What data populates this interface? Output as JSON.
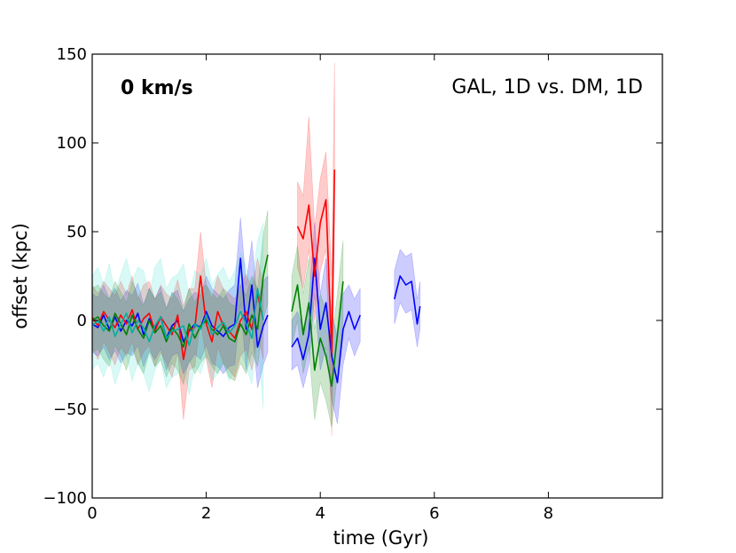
{
  "chart_data": {
    "type": "line",
    "title": "",
    "xlabel": "time (Gyr)",
    "ylabel": "offset (kpc)",
    "xlim": [
      0,
      10
    ],
    "ylim": [
      -100,
      150
    ],
    "xticks": [
      0,
      2,
      4,
      6,
      8
    ],
    "xtick_labels": [
      "0",
      "2",
      "4",
      "6",
      "8"
    ],
    "yticks": [
      -100,
      -50,
      0,
      50,
      100,
      150
    ],
    "ytick_labels": [
      "−100",
      "−50",
      "0",
      "50",
      "100",
      "150"
    ],
    "grid": false,
    "annotations": {
      "left": "0 km/s",
      "right": "GAL, 1D vs. DM, 1D"
    },
    "series": [
      {
        "name": "blue",
        "color": "#0000ff",
        "band_color": "#0000ff",
        "segments": [
          {
            "x": [
              0.0,
              0.1,
              0.2,
              0.3,
              0.4,
              0.5,
              0.6,
              0.7,
              0.8,
              0.9,
              1.0,
              1.1,
              1.2,
              1.3,
              1.4,
              1.5,
              1.6,
              1.7,
              1.8,
              1.9,
              2.0,
              2.1,
              2.2,
              2.3,
              2.4,
              2.5,
              2.6,
              2.7,
              2.8,
              2.9,
              3.0,
              3.08
            ],
            "y": [
              -2,
              -4,
              3,
              -5,
              2,
              -6,
              0,
              -3,
              4,
              -8,
              1,
              -5,
              2,
              -10,
              -3,
              0,
              -12,
              -6,
              -2,
              -4,
              5,
              -3,
              -6,
              -9,
              -4,
              -2,
              35,
              -5,
              20,
              -15,
              -3,
              3
            ],
            "lo": [
              -18,
              -20,
              -15,
              -22,
              -17,
              -24,
              -18,
              -20,
              -14,
              -26,
              -17,
              -22,
              -16,
              -28,
              -20,
              -18,
              -30,
              -24,
              -19,
              -22,
              -14,
              -24,
              -26,
              -30,
              -26,
              -25,
              10,
              -28,
              -2,
              -38,
              -25,
              -18
            ],
            "hi": [
              15,
              13,
              20,
              12,
              18,
              11,
              17,
              14,
              21,
              9,
              18,
              12,
              19,
              7,
              15,
              17,
              5,
              12,
              16,
              14,
              25,
              18,
              15,
              12,
              17,
              20,
              58,
              20,
              45,
              10,
              22,
              25
            ]
          },
          {
            "x": [
              3.5,
              3.6,
              3.7,
              3.8,
              3.9,
              4.0,
              4.1,
              4.2,
              4.3,
              4.4,
              4.5,
              4.6,
              4.7
            ],
            "y": [
              -15,
              -10,
              -22,
              -8,
              35,
              -5,
              10,
              -20,
              -35,
              -5,
              5,
              -5,
              3
            ],
            "lo": [
              -28,
              -25,
              -38,
              -25,
              15,
              -28,
              -15,
              -45,
              -58,
              -25,
              -10,
              -20,
              -12
            ],
            "hi": [
              0,
              5,
              -5,
              10,
              55,
              15,
              35,
              5,
              -10,
              15,
              20,
              12,
              18
            ]
          },
          {
            "x": [
              5.3,
              5.4,
              5.5,
              5.6,
              5.7,
              5.75
            ],
            "y": [
              12,
              25,
              20,
              22,
              -2,
              8
            ],
            "lo": [
              -2,
              10,
              4,
              6,
              -15,
              -5
            ],
            "hi": [
              28,
              40,
              36,
              38,
              12,
              22
            ]
          }
        ]
      },
      {
        "name": "red",
        "color": "#ff0000",
        "band_color": "#ff0000",
        "segments": [
          {
            "x": [
              0.0,
              0.1,
              0.2,
              0.3,
              0.4,
              0.5,
              0.6,
              0.7,
              0.8,
              0.9,
              1.0,
              1.1,
              1.2,
              1.3,
              1.4,
              1.5,
              1.6,
              1.7,
              1.8,
              1.9,
              2.0,
              2.1,
              2.2,
              2.3,
              2.4,
              2.5,
              2.6,
              2.7,
              2.8,
              2.9,
              3.0
            ],
            "y": [
              2,
              -3,
              5,
              0,
              -4,
              3,
              -2,
              6,
              -5,
              1,
              4,
              -6,
              2,
              -3,
              -8,
              3,
              -22,
              -5,
              -4,
              25,
              -2,
              -12,
              5,
              -3,
              -6,
              -10,
              0,
              5,
              -5,
              15,
              0
            ],
            "lo": [
              -15,
              -22,
              -12,
              -18,
              -25,
              -15,
              -20,
              -12,
              -25,
              -18,
              -14,
              -26,
              -18,
              -24,
              -32,
              -18,
              -56,
              -28,
              -26,
              0,
              -22,
              -38,
              -15,
              -24,
              -28,
              -32,
              -20,
              -16,
              -28,
              -8,
              -22
            ],
            "hi": [
              20,
              15,
              22,
              18,
              14,
              22,
              15,
              25,
              12,
              20,
              22,
              12,
              20,
              15,
              12,
              23,
              8,
              18,
              18,
              50,
              20,
              12,
              25,
              18,
              15,
              12,
              20,
              26,
              18,
              35,
              20
            ]
          },
          {
            "x": [
              3.6,
              3.7,
              3.8,
              3.9,
              4.0,
              4.1,
              4.2,
              4.25
            ],
            "y": [
              53,
              46,
              65,
              25,
              55,
              68,
              -18,
              85
            ],
            "lo": [
              30,
              18,
              40,
              0,
              28,
              40,
              -65,
              55
            ],
            "hi": [
              78,
              70,
              115,
              52,
              80,
              95,
              25,
              145
            ]
          }
        ]
      },
      {
        "name": "green",
        "color": "#008000",
        "band_color": "#008000",
        "segments": [
          {
            "x": [
              0.0,
              0.1,
              0.2,
              0.3,
              0.4,
              0.5,
              0.6,
              0.7,
              0.8,
              0.9,
              1.0,
              1.1,
              1.2,
              1.3,
              1.4,
              1.5,
              1.6,
              1.7,
              1.8,
              1.9,
              2.0,
              2.1,
              2.2,
              2.3,
              2.4,
              2.5,
              2.6,
              2.7,
              2.8,
              2.9,
              3.0,
              3.08
            ],
            "y": [
              0,
              2,
              -3,
              -6,
              4,
              -2,
              -8,
              3,
              -5,
              -10,
              0,
              -7,
              -3,
              -12,
              -4,
              -8,
              -15,
              -2,
              -10,
              -3,
              0,
              -5,
              -8,
              -3,
              -10,
              -12,
              -2,
              -8,
              3,
              -5,
              25,
              37
            ],
            "lo": [
              -18,
              -16,
              -22,
              -26,
              -14,
              -20,
              -28,
              -16,
              -24,
              -30,
              -18,
              -26,
              -22,
              -32,
              -24,
              -28,
              -36,
              -22,
              -30,
              -24,
              -20,
              -26,
              -30,
              -24,
              -32,
              -34,
              -24,
              -30,
              -18,
              -26,
              0,
              10
            ],
            "hi": [
              18,
              20,
              15,
              12,
              22,
              16,
              10,
              22,
              14,
              8,
              18,
              12,
              16,
              6,
              16,
              12,
              5,
              18,
              10,
              17,
              20,
              15,
              12,
              18,
              10,
              8,
              20,
              14,
              25,
              18,
              48,
              62
            ]
          },
          {
            "x": [
              3.5,
              3.6,
              3.7,
              3.8,
              3.9,
              4.0,
              4.1,
              4.2,
              4.3,
              4.4
            ],
            "y": [
              5,
              20,
              -8,
              10,
              -28,
              -10,
              -20,
              -37,
              -8,
              22
            ],
            "lo": [
              -15,
              0,
              -30,
              -15,
              -56,
              -35,
              -45,
              -60,
              -30,
              0
            ],
            "hi": [
              25,
              42,
              15,
              35,
              -5,
              15,
              5,
              -12,
              15,
              45
            ]
          }
        ]
      },
      {
        "name": "teal",
        "color": "#00b0a0",
        "band_color": "#40e0d0",
        "segments": [
          {
            "x": [
              0.0,
              0.1,
              0.2,
              0.3,
              0.4,
              0.5,
              0.6,
              0.7,
              0.8,
              0.9,
              1.0,
              1.1,
              1.2,
              1.3,
              1.4,
              1.5,
              1.6,
              1.7,
              1.8,
              1.9,
              2.0,
              2.1,
              2.2,
              2.3,
              2.4,
              2.5,
              2.6,
              2.7,
              2.8,
              2.9,
              3.0
            ],
            "y": [
              -3,
              0,
              -6,
              2,
              -9,
              -2,
              4,
              -7,
              0,
              -4,
              -12,
              -3,
              2,
              -10,
              -6,
              -5,
              -3,
              -14,
              -2,
              -5,
              3,
              -8,
              -4,
              -1,
              -7,
              -3,
              5,
              -2,
              -10,
              18,
              0
            ],
            "lo": [
              -28,
              -24,
              -32,
              -22,
              -36,
              -26,
              -20,
              -34,
              -24,
              -30,
              -40,
              -28,
              -22,
              -38,
              -32,
              -30,
              -26,
              -42,
              -26,
              -30,
              -20,
              -34,
              -30,
              -24,
              -34,
              -28,
              -18,
              -26,
              -36,
              -8,
              -50
            ],
            "hi": [
              25,
              30,
              20,
              32,
              15,
              26,
              35,
              22,
              30,
              28,
              15,
              30,
              35,
              18,
              24,
              26,
              32,
              14,
              28,
              26,
              35,
              20,
              26,
              30,
              22,
              28,
              38,
              30,
              20,
              45,
              55
            ]
          }
        ]
      }
    ]
  }
}
